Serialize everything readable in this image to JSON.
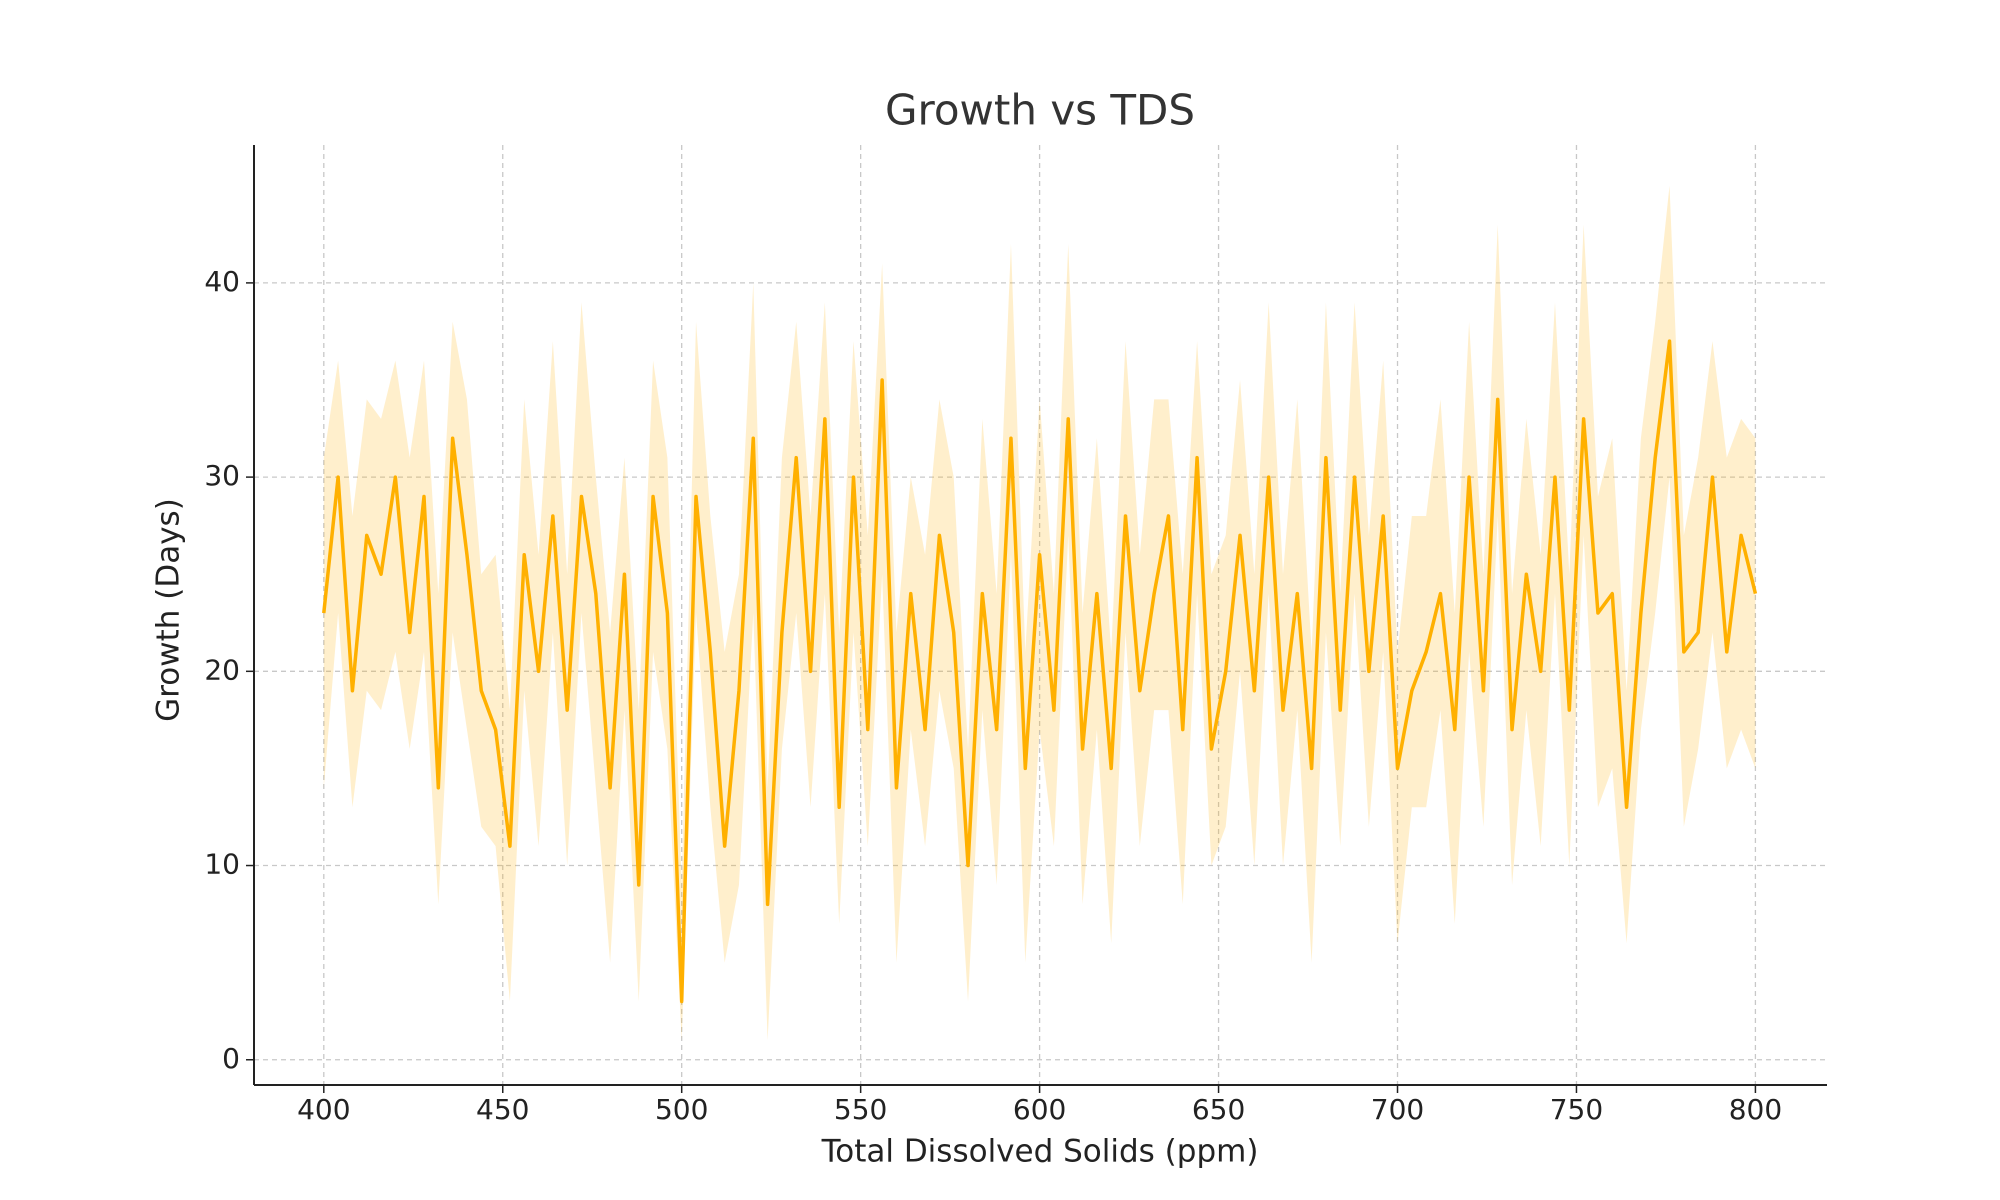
{
  "chart_data": {
    "type": "line",
    "title": "Growth vs TDS",
    "xlabel": "Total Dissolved Solids (ppm)",
    "ylabel": "Growth (Days)",
    "x": [
      400,
      404,
      408,
      412,
      416,
      420,
      424,
      428,
      432,
      436,
      440,
      444,
      448,
      452,
      456,
      460,
      464,
      468,
      472,
      476,
      480,
      484,
      488,
      492,
      496,
      500,
      504,
      508,
      512,
      516,
      520,
      524,
      528,
      532,
      536,
      540,
      544,
      548,
      552,
      556,
      560,
      564,
      568,
      572,
      576,
      580,
      584,
      588,
      592,
      596,
      600,
      604,
      608,
      612,
      616,
      620,
      624,
      628,
      632,
      636,
      640,
      644,
      648,
      652,
      656,
      660,
      664,
      668,
      672,
      676,
      680,
      684,
      688,
      692,
      696,
      700,
      704,
      708,
      712,
      716,
      720,
      724,
      728,
      732,
      736,
      740,
      744,
      748,
      752,
      756,
      760,
      764,
      768,
      772,
      776,
      780,
      784,
      788,
      792,
      796,
      800
    ],
    "series": [
      {
        "color": "#ffb000",
        "values": [
          23,
          30,
          19,
          27,
          25,
          30,
          22,
          29,
          14,
          32,
          26,
          19,
          17,
          11,
          26,
          20,
          28,
          18,
          29,
          24,
          14,
          25,
          9,
          29,
          23,
          3,
          29,
          21,
          11,
          19,
          32,
          8,
          22,
          31,
          20,
          33,
          13,
          30,
          17,
          35,
          14,
          24,
          17,
          27,
          22,
          10,
          24,
          17,
          32,
          15,
          26,
          18,
          33,
          16,
          24,
          15,
          28,
          19,
          24,
          28,
          17,
          31,
          16,
          20,
          27,
          19,
          30,
          18,
          24,
          15,
          31,
          18,
          30,
          20,
          28,
          15,
          19,
          21,
          24,
          17,
          30,
          19,
          34,
          17,
          25,
          20,
          30,
          18,
          33,
          23,
          24,
          13,
          23,
          31,
          37,
          21,
          22,
          30,
          21,
          27,
          24
        ],
        "lower": [
          14,
          23,
          13,
          19,
          18,
          21,
          16,
          21,
          8,
          22,
          17,
          12,
          11,
          3,
          19,
          11,
          22,
          10,
          23,
          14,
          5,
          18,
          3,
          21,
          16,
          1,
          23,
          13,
          5,
          9,
          23,
          1,
          16,
          23,
          13,
          24,
          7,
          22,
          11,
          25,
          5,
          17,
          11,
          19,
          15,
          3,
          18,
          9,
          26,
          5,
          17,
          11,
          27,
          8,
          17,
          6,
          22,
          11,
          18,
          18,
          8,
          24,
          10,
          12,
          20,
          10,
          24,
          10,
          18,
          5,
          22,
          11,
          24,
          12,
          21,
          6,
          13,
          13,
          18,
          7,
          21,
          12,
          28,
          9,
          18,
          11,
          24,
          10,
          27,
          13,
          15,
          6,
          17,
          23,
          30,
          12,
          16,
          22,
          15,
          17,
          15
        ],
        "upper": [
          31,
          36,
          28,
          34,
          33,
          36,
          31,
          36,
          24,
          38,
          34,
          25,
          26,
          18,
          34,
          26,
          37,
          25,
          39,
          30,
          22,
          31,
          18,
          36,
          31,
          9,
          38,
          28,
          21,
          25,
          40,
          14,
          31,
          38,
          28,
          39,
          22,
          37,
          27,
          41,
          22,
          30,
          26,
          34,
          30,
          16,
          33,
          24,
          42,
          21,
          34,
          24,
          42,
          23,
          32,
          21,
          37,
          26,
          34,
          34,
          25,
          37,
          25,
          27,
          35,
          25,
          39,
          25,
          34,
          21,
          39,
          24,
          39,
          27,
          36,
          21,
          28,
          28,
          34,
          23,
          38,
          25,
          43,
          24,
          33,
          26,
          39,
          25,
          43,
          29,
          32,
          19,
          32,
          38,
          45,
          27,
          31,
          37,
          31,
          33,
          32
        ]
      }
    ],
    "xlim": [
      380.5,
      820
    ],
    "ylim": [
      -1.3,
      47.1
    ],
    "xticks": [
      400,
      450,
      500,
      550,
      600,
      650,
      700,
      750,
      800
    ],
    "yticks": [
      0,
      10,
      20,
      30,
      40
    ],
    "grid": true
  }
}
